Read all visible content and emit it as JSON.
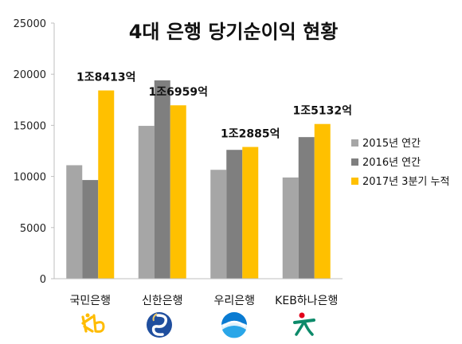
{
  "colors": {
    "s2015": "#a6a6a6",
    "s2016": "#7f7f7f",
    "s2017": "#ffc000",
    "axis": "#bfbfbf",
    "kb": "#ffbc00",
    "shinhan": "#1f4e9e",
    "woori": "#0a7bd2",
    "hana": "#0d8a6a"
  },
  "chart_data": {
    "type": "bar",
    "title": "4대 은행 당기순이익 현황",
    "categories": [
      "국민은행",
      "신한은행",
      "우리은행",
      "KEB하나은행"
    ],
    "series": [
      {
        "name": "2015년 연간",
        "values": [
          11100,
          14950,
          10650,
          9900
        ]
      },
      {
        "name": "2016년 연간",
        "values": [
          9650,
          19400,
          12600,
          13850
        ]
      },
      {
        "name": "2017년 3분기 누적",
        "values": [
          18413,
          16959,
          12885,
          15132
        ]
      }
    ],
    "data_labels": [
      "1조8413억",
      "1조6959억",
      "1조2885억",
      "1조5132억"
    ],
    "yticks": [
      "0",
      "5000",
      "10000",
      "15000",
      "20000",
      "25000"
    ],
    "ylim": [
      0,
      25000
    ],
    "grid": false,
    "legend_position": "right",
    "bank_logos": [
      "kb-logo-icon",
      "shinhan-logo-icon",
      "woori-logo-icon",
      "hana-logo-icon"
    ]
  }
}
